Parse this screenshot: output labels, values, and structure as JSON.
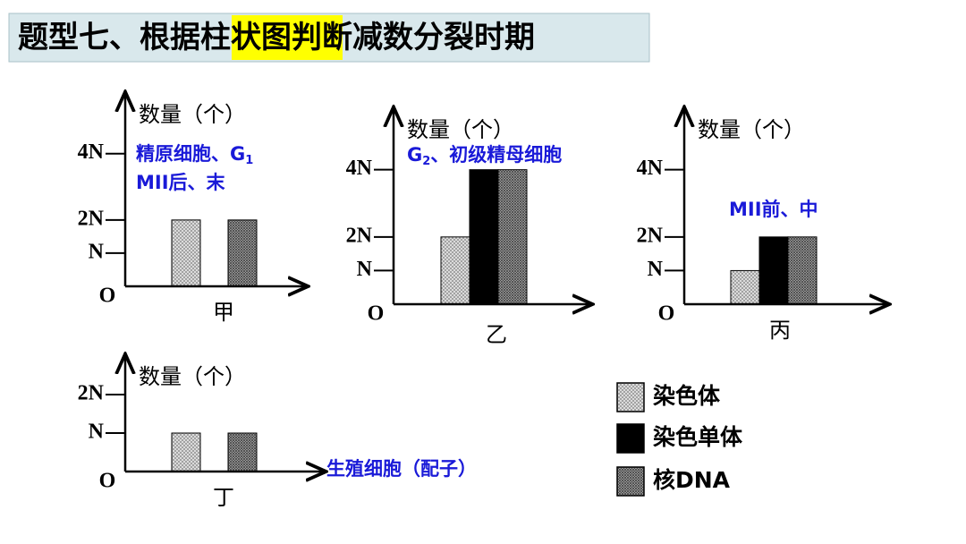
{
  "title": [
    "题型七、根据",
    "柱状图",
    "判断减数分裂时期"
  ],
  "legend": [
    {
      "name": "染色体",
      "pattern": "light"
    },
    {
      "name": "染色单体",
      "color": "#000000"
    },
    {
      "name": "核DNA",
      "pattern": "dark"
    }
  ],
  "chart_data": [
    {
      "type": "bar",
      "ylabel": "数量（个）",
      "xlabel": "甲",
      "origin": "O",
      "annotations": [
        {
          "text": "精原细胞、G",
          "sub": "1"
        },
        {
          "text": "MII后、末"
        }
      ],
      "values": [
        2,
        null,
        2
      ],
      "ylim": [
        0,
        5.8
      ],
      "yticks": [
        {
          "value": 1,
          "label": "N"
        },
        {
          "value": 2,
          "label": "2N"
        },
        {
          "value": 4,
          "label": "4N"
        }
      ]
    },
    {
      "type": "bar",
      "ylabel": "数量（个）",
      "xlabel": "乙",
      "origin": "O",
      "annotations": [
        {
          "text": "G",
          "sub": "2",
          "after": "、初级精母细胞"
        }
      ],
      "values": [
        2,
        4,
        4
      ],
      "ylim": [
        0,
        5.8
      ],
      "yticks": [
        {
          "value": 1,
          "label": "N"
        },
        {
          "value": 2,
          "label": "2N"
        },
        {
          "value": 4,
          "label": "4N"
        }
      ]
    },
    {
      "type": "bar",
      "ylabel": "数量（个）",
      "xlabel": "丙",
      "origin": "O",
      "annotations": [
        {
          "text": "MII前、中"
        }
      ],
      "values": [
        1,
        2,
        2
      ],
      "ylim": [
        0,
        5.8
      ],
      "yticks": [
        {
          "value": 1,
          "label": "N"
        },
        {
          "value": 2,
          "label": "2N"
        },
        {
          "value": 4,
          "label": "4N"
        }
      ]
    },
    {
      "type": "bar",
      "ylabel": "数量（个）",
      "xlabel": "丁",
      "origin": "O",
      "annotations": [
        {
          "text": "生殖细胞（配子）"
        }
      ],
      "values": [
        1,
        null,
        1
      ],
      "ylim": [
        0,
        3.0
      ],
      "yticks": [
        {
          "value": 1,
          "label": "N"
        },
        {
          "value": 2,
          "label": "2N"
        }
      ]
    }
  ]
}
